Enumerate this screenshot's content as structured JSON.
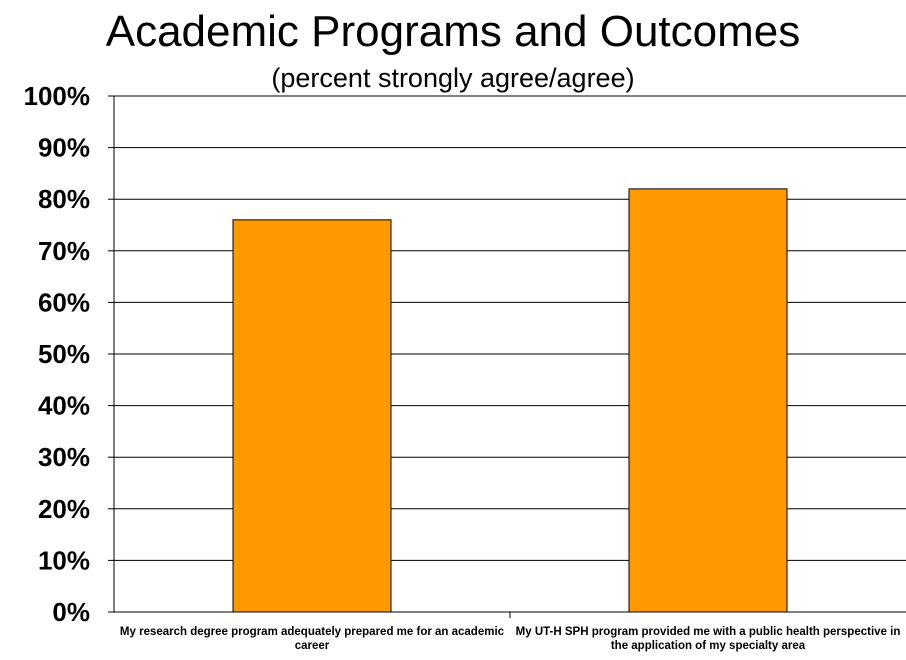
{
  "chart_data": {
    "type": "bar",
    "title": "Academic Programs and Outcomes",
    "subtitle": "(percent strongly agree/agree)",
    "categories": [
      "My research degree program adequately prepared me for an academic career",
      "My UT-H SPH program provided me with a public health perspective in the application of my specialty area"
    ],
    "values": [
      76,
      82
    ],
    "ylim": [
      0,
      100
    ],
    "yticks": [
      "0%",
      "10%",
      "20%",
      "30%",
      "40%",
      "50%",
      "60%",
      "70%",
      "80%",
      "90%",
      "100%"
    ],
    "grid": true,
    "bar_color": "#ff9900",
    "bar_edge_color": "#000000"
  }
}
